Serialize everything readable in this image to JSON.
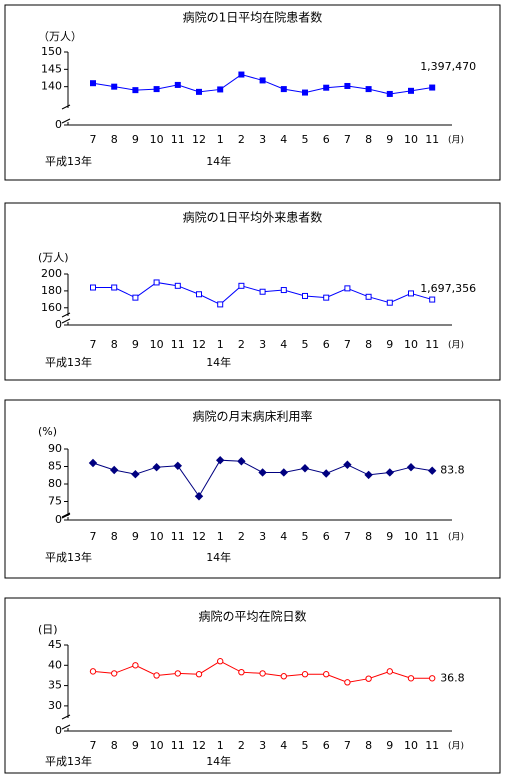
{
  "chart_data": [
    {
      "type": "line",
      "title": "病院の1日平均在院患者数",
      "y_label": "（万人）",
      "x_label": "(月)",
      "categories": [
        "7",
        "8",
        "9",
        "10",
        "11",
        "12",
        "1",
        "2",
        "3",
        "4",
        "5",
        "6",
        "7",
        "8",
        "9",
        "10",
        "11"
      ],
      "series": [
        {
          "name": "病院の1日平均在院患者数",
          "color": "#0000ff",
          "marker": "square",
          "marker_filled": true,
          "values": [
            141,
            140,
            139,
            139.3,
            140.5,
            138.5,
            139.2,
            143.5,
            141.8,
            139.3,
            138.3,
            139.7,
            140.2,
            139.3,
            137.9,
            138.8,
            139.747
          ],
          "value_labels": [
            null,
            null,
            null,
            null,
            null,
            null,
            null,
            null,
            null,
            null,
            null,
            null,
            null,
            null,
            null,
            null,
            "1,397,470"
          ]
        }
      ],
      "ylim": [
        0,
        150
      ],
      "yticks": [
        0,
        140,
        145,
        150
      ],
      "axis_break": [
        0,
        135
      ],
      "annotations": [
        {
          "text": "平成13年",
          "category_index": 0
        },
        {
          "text": "14年",
          "category_index": 6
        }
      ]
    },
    {
      "type": "line",
      "title": "病院の1日平均外来患者数",
      "y_label": "(万人)",
      "x_label": "(月)",
      "categories": [
        "7",
        "8",
        "9",
        "10",
        "11",
        "12",
        "1",
        "2",
        "3",
        "4",
        "5",
        "6",
        "7",
        "8",
        "9",
        "10",
        "11"
      ],
      "series": [
        {
          "name": "病院の1日平均外来患者数",
          "color": "#0000ff",
          "marker": "square",
          "marker_filled": false,
          "values": [
            184,
            184,
            172,
            190,
            186,
            176,
            164,
            186,
            179,
            181,
            174,
            172,
            183,
            173,
            166,
            177,
            169.7356
          ],
          "value_labels": [
            null,
            null,
            null,
            null,
            null,
            null,
            null,
            null,
            null,
            null,
            null,
            null,
            null,
            null,
            null,
            null,
            "1,697,356"
          ]
        }
      ],
      "ylim": [
        0,
        200
      ],
      "yticks": [
        0,
        160,
        180,
        200
      ],
      "axis_break": [
        0,
        155
      ],
      "annotations": [
        {
          "text": "平成13年",
          "category_index": 0
        },
        {
          "text": "14年",
          "category_index": 6
        }
      ]
    },
    {
      "type": "line",
      "title": "病院の月末病床利用率",
      "y_label": "(%)",
      "x_label": "(月)",
      "categories": [
        "7",
        "8",
        "9",
        "10",
        "11",
        "12",
        "1",
        "2",
        "3",
        "4",
        "5",
        "6",
        "7",
        "8",
        "9",
        "10",
        "11"
      ],
      "series": [
        {
          "name": "病院の月末病床利用率",
          "color": "#000080",
          "marker": "diamond",
          "marker_filled": true,
          "values": [
            86,
            84,
            82.8,
            84.8,
            85.2,
            76.5,
            86.8,
            86.5,
            83.3,
            83.3,
            84.5,
            83,
            85.5,
            82.6,
            83.3,
            84.8,
            83.8
          ],
          "value_labels": [
            null,
            null,
            null,
            null,
            null,
            null,
            null,
            null,
            null,
            null,
            null,
            null,
            null,
            null,
            null,
            null,
            "83.8"
          ]
        }
      ],
      "ylim": [
        0,
        90
      ],
      "yticks": [
        0,
        75,
        80,
        85,
        90
      ],
      "axis_break": [
        0,
        72
      ],
      "annotations": [
        {
          "text": "平成13年",
          "category_index": 0
        },
        {
          "text": "14年",
          "category_index": 6
        }
      ]
    },
    {
      "type": "line",
      "title": "病院の平均在院日数",
      "y_label": "(日)",
      "x_label": "(月)",
      "categories": [
        "7",
        "8",
        "9",
        "10",
        "11",
        "12",
        "1",
        "2",
        "3",
        "4",
        "5",
        "6",
        "7",
        "8",
        "9",
        "10",
        "11"
      ],
      "series": [
        {
          "name": "病院の平均在院日数",
          "color": "#ff0000",
          "marker": "circle",
          "marker_filled": false,
          "values": [
            38.5,
            38,
            40,
            37.5,
            38,
            37.8,
            41,
            38.3,
            38,
            37.3,
            37.8,
            37.8,
            35.8,
            36.7,
            38.5,
            36.8,
            36.8
          ],
          "value_labels": [
            null,
            null,
            null,
            null,
            null,
            null,
            null,
            null,
            null,
            null,
            null,
            null,
            null,
            null,
            null,
            null,
            "36.8"
          ]
        }
      ],
      "ylim": [
        0,
        45
      ],
      "yticks": [
        0,
        30,
        35,
        40,
        45
      ],
      "axis_break": [
        0,
        28
      ],
      "annotations": [
        {
          "text": "平成13年",
          "category_index": 0
        },
        {
          "text": "14年",
          "category_index": 6
        }
      ]
    }
  ]
}
